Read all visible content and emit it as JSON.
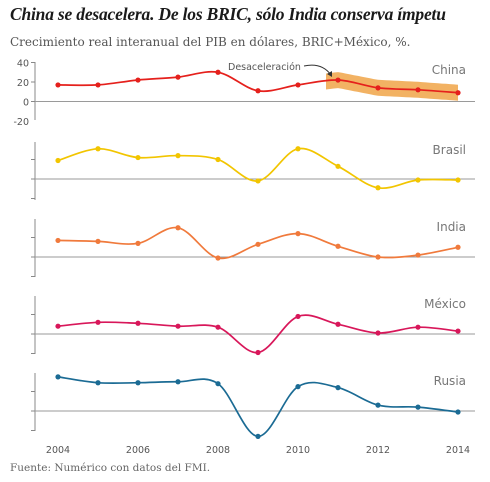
{
  "title": "China se desacelera. De los BRIC, sólo India conserva ímpetu",
  "subtitle": "Crecimiento real interanual del PIB en dólares, BRIC+México, %.",
  "source": "Fuente: Numérico con datos del FMI.",
  "colors": {
    "China": "#e5201c",
    "Brasil": "#f2c500",
    "India": "#f07a3c",
    "México": "#d8175a",
    "Rusia": "#1b6b94",
    "axis": "#888888",
    "highlight": "#f0a448"
  },
  "chart_data": [
    {
      "type": "line",
      "title": "China",
      "x": [
        2004,
        2005,
        2006,
        2007,
        2008,
        2009,
        2010,
        2011,
        2012,
        2013,
        2014
      ],
      "values": [
        17,
        17,
        22,
        25,
        30,
        11,
        17,
        22,
        14,
        12,
        9
      ],
      "ylim": [
        -20,
        40
      ],
      "yticks": [
        "40",
        "20",
        "0",
        "-20"
      ],
      "annotation": {
        "text": "Desaceleración",
        "x_start": 2010.7,
        "x_end": 2014
      }
    },
    {
      "type": "line",
      "title": "Brasil",
      "x": [
        2004,
        2005,
        2006,
        2007,
        2008,
        2009,
        2010,
        2011,
        2012,
        2013,
        2014
      ],
      "values": [
        19,
        31,
        22,
        24,
        20,
        -2,
        31,
        13,
        -9,
        -1,
        -1
      ]
    },
    {
      "type": "line",
      "title": "India",
      "x": [
        2004,
        2005,
        2006,
        2007,
        2008,
        2009,
        2010,
        2011,
        2012,
        2013,
        2014
      ],
      "values": [
        17,
        16,
        14,
        30,
        -1,
        13,
        24,
        11,
        0,
        2,
        10
      ]
    },
    {
      "type": "line",
      "title": "México",
      "x": [
        2004,
        2005,
        2006,
        2007,
        2008,
        2009,
        2010,
        2011,
        2012,
        2013,
        2014
      ],
      "values": [
        8,
        12,
        11,
        8,
        7,
        -19,
        18,
        10,
        1,
        7,
        3
      ]
    },
    {
      "type": "line",
      "title": "Rusia",
      "x": [
        2004,
        2005,
        2006,
        2007,
        2008,
        2009,
        2010,
        2011,
        2012,
        2013,
        2014
      ],
      "values": [
        35,
        29,
        29,
        30,
        28,
        -26,
        25,
        24,
        6,
        4,
        -1
      ]
    }
  ],
  "x_ticks": [
    "2004",
    "2006",
    "2008",
    "2010",
    "2012",
    "2014"
  ]
}
